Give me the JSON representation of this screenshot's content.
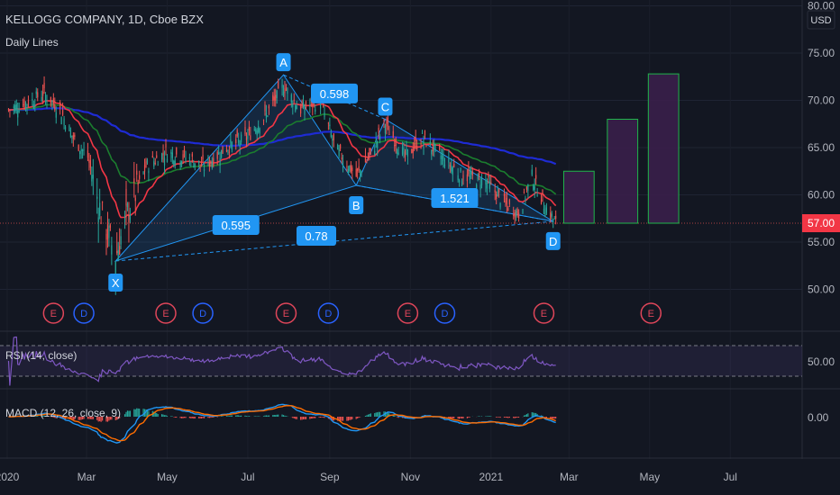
{
  "header": {
    "title": "KELLOGG COMPANY, 1D, Cboe BZX",
    "subtitle": "Daily Lines"
  },
  "currency": "USD",
  "price_axis": {
    "ticks": [
      "80.00",
      "75.00",
      "70.00",
      "65.00",
      "60.00",
      "55.00",
      "50.00"
    ],
    "last_price_label": "57.00",
    "last_price": 57.0
  },
  "rsi_panel": {
    "label": "RSI (14, close)",
    "tick": "50.00"
  },
  "macd_panel": {
    "label": "MACD (12, 26, close, 9)",
    "tick": "0.00"
  },
  "time_axis": [
    "2020",
    "Mar",
    "May",
    "Jul",
    "Sep",
    "Nov",
    "2021",
    "Mar",
    "May",
    "Jul"
  ],
  "pattern": {
    "points": [
      {
        "label": "X",
        "date": "2020-03-23",
        "price": 53.0
      },
      {
        "label": "A",
        "date": "2020-07-28",
        "price": 72.7
      },
      {
        "label": "B",
        "date": "2020-09-21",
        "price": 61.0
      },
      {
        "label": "C",
        "date": "2020-10-13",
        "price": 68.0
      },
      {
        "label": "D",
        "date": "2021-02-17",
        "price": 57.2
      }
    ],
    "ratios": [
      {
        "label": "0.598",
        "between": "A-C"
      },
      {
        "label": "0.595",
        "between": "X-B"
      },
      {
        "label": "1.521",
        "between": "B-D"
      },
      {
        "label": "0.78",
        "between": "X-D"
      }
    ]
  },
  "projection_boxes": [
    {
      "start": "2021-02-25",
      "end": "2021-03-20",
      "low": 57.0,
      "high": 62.5
    },
    {
      "start": "2021-03-30",
      "end": "2021-04-22",
      "low": 57.0,
      "high": 68.0
    },
    {
      "start": "2021-04-30",
      "end": "2021-05-23",
      "low": 57.0,
      "high": 72.8
    }
  ],
  "events": [
    {
      "type": "E",
      "date": "2020-02-05"
    },
    {
      "type": "D",
      "date": "2020-02-28"
    },
    {
      "type": "E",
      "date": "2020-04-30"
    },
    {
      "type": "D",
      "date": "2020-05-28"
    },
    {
      "type": "E",
      "date": "2020-07-30"
    },
    {
      "type": "D",
      "date": "2020-08-31"
    },
    {
      "type": "E",
      "date": "2020-10-30"
    },
    {
      "type": "D",
      "date": "2020-11-27"
    },
    {
      "type": "E",
      "date": "2021-02-10"
    },
    {
      "type": "E",
      "date": "2021-05-02"
    }
  ],
  "colors": {
    "background": "#131722",
    "up": "#26a69a",
    "down": "#ef5350",
    "pattern": "#2196f3",
    "ema_short": "#f23645",
    "ema_mid": "#1b7d2e",
    "ema_long": "#1e2bd4",
    "rsi": "#7e57c2",
    "macd": "#2196f3",
    "signal": "#ff6d00",
    "projection": "#1fb64a",
    "earnings": "#e0465a",
    "dividend": "#2962ff"
  },
  "chart_data": {
    "type": "candlestick",
    "symbol": "K",
    "interval": "1D",
    "x_range": [
      "2020-01-01",
      "2021-08-01"
    ],
    "ylim": [
      46,
      80
    ],
    "close_path": [
      {
        "date": "2020-01-02",
        "close": 69.0
      },
      {
        "date": "2020-01-20",
        "close": 70.0
      },
      {
        "date": "2020-01-28",
        "close": 70.8
      },
      {
        "date": "2020-02-10",
        "close": 69.0
      },
      {
        "date": "2020-02-20",
        "close": 66.0
      },
      {
        "date": "2020-03-02",
        "close": 64.0
      },
      {
        "date": "2020-03-12",
        "close": 58.0
      },
      {
        "date": "2020-03-23",
        "close": 53.5
      },
      {
        "date": "2020-04-01",
        "close": 58.0
      },
      {
        "date": "2020-04-15",
        "close": 63.0
      },
      {
        "date": "2020-04-30",
        "close": 64.5
      },
      {
        "date": "2020-05-15",
        "close": 64.0
      },
      {
        "date": "2020-05-29",
        "close": 63.0
      },
      {
        "date": "2020-06-15",
        "close": 65.0
      },
      {
        "date": "2020-06-30",
        "close": 66.0
      },
      {
        "date": "2020-07-15",
        "close": 68.5
      },
      {
        "date": "2020-07-28",
        "close": 71.5
      },
      {
        "date": "2020-08-10",
        "close": 69.0
      },
      {
        "date": "2020-08-25",
        "close": 70.0
      },
      {
        "date": "2020-09-05",
        "close": 65.0
      },
      {
        "date": "2020-09-21",
        "close": 62.0
      },
      {
        "date": "2020-10-01",
        "close": 64.0
      },
      {
        "date": "2020-10-13",
        "close": 67.5
      },
      {
        "date": "2020-10-28",
        "close": 64.0
      },
      {
        "date": "2020-11-10",
        "close": 66.0
      },
      {
        "date": "2020-11-25",
        "close": 64.0
      },
      {
        "date": "2020-12-10",
        "close": 62.0
      },
      {
        "date": "2020-12-28",
        "close": 61.5
      },
      {
        "date": "2021-01-12",
        "close": 59.0
      },
      {
        "date": "2021-01-22",
        "close": 58.0
      },
      {
        "date": "2021-02-01",
        "close": 62.0
      },
      {
        "date": "2021-02-10",
        "close": 59.0
      },
      {
        "date": "2021-02-19",
        "close": 57.0
      }
    ]
  }
}
